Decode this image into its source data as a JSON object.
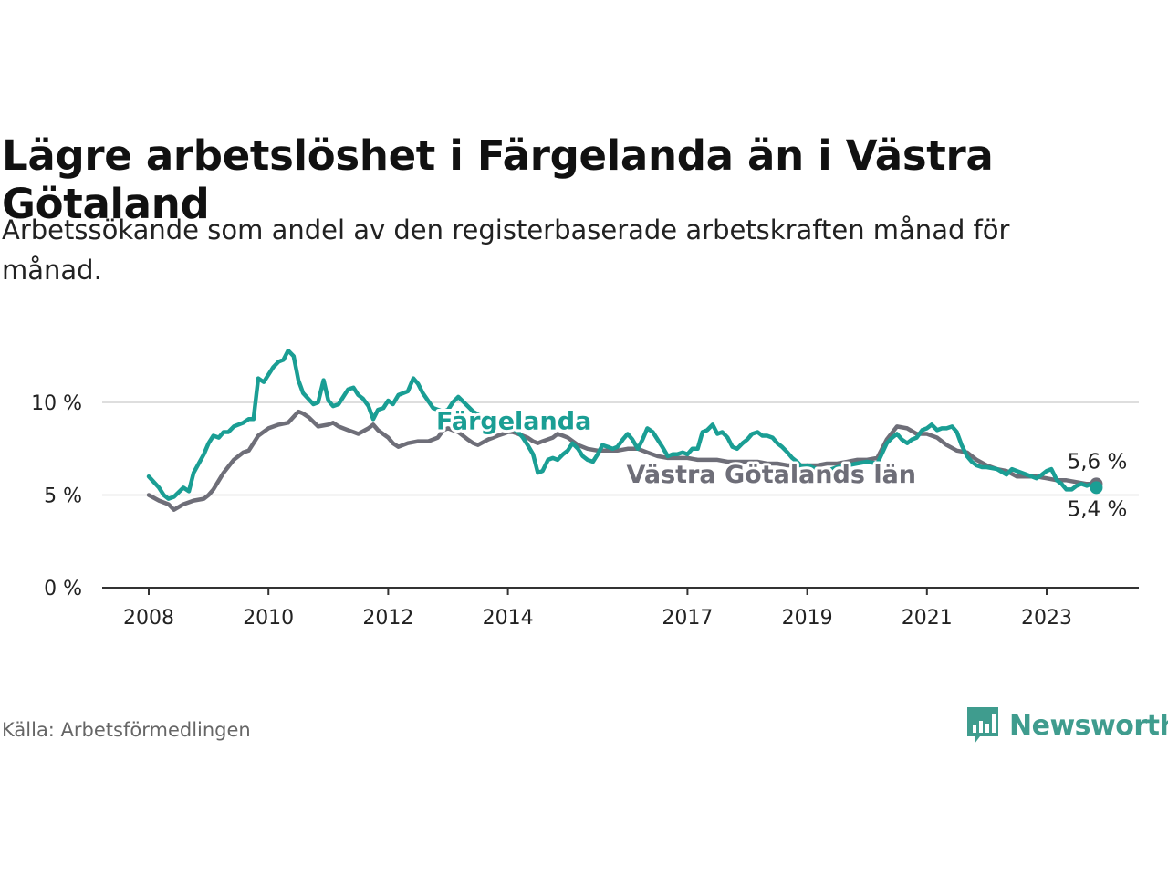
{
  "title": "Lägre arbetslöshet i Färgelanda än i Västra Götaland",
  "subtitle": "Arbetssökande som andel av den registerbaserade arbetskraften månad för månad.",
  "source": "Källa: Arbetsförmedlingen",
  "brand": {
    "name": "Newsworthy",
    "color": "#3f9c8e",
    "icon": "bar-chart-speech-bubble-icon"
  },
  "chart_data": {
    "type": "line",
    "title": "Lägre arbetslöshet i Färgelanda än i Västra Götaland",
    "xlabel": "",
    "ylabel": "",
    "xlim": [
      2008,
      2024.6
    ],
    "ylim": [
      0,
      13
    ],
    "x_ticks": [
      {
        "value": 2008,
        "label": "2008"
      },
      {
        "value": 2010,
        "label": "2010"
      },
      {
        "value": 2012,
        "label": "2012"
      },
      {
        "value": 2014,
        "label": "2014"
      },
      {
        "value": 2017,
        "label": "2017"
      },
      {
        "value": 2019,
        "label": "2019"
      },
      {
        "value": 2021,
        "label": "2021"
      },
      {
        "value": 2023,
        "label": "2023"
      }
    ],
    "y_ticks": [
      {
        "value": 0,
        "label": "0 %"
      },
      {
        "value": 5,
        "label": "5 %"
      },
      {
        "value": 10,
        "label": "10 %"
      }
    ],
    "grid": true,
    "series": [
      {
        "name": "Västra Götalands län",
        "color": "#6e6e78",
        "end_label": "5,6 %",
        "points": [
          [
            2008.0,
            5.0
          ],
          [
            2008.17,
            4.7
          ],
          [
            2008.33,
            4.5
          ],
          [
            2008.42,
            4.2
          ],
          [
            2008.58,
            4.5
          ],
          [
            2008.75,
            4.7
          ],
          [
            2008.92,
            4.8
          ],
          [
            2009.0,
            5.0
          ],
          [
            2009.08,
            5.3
          ],
          [
            2009.25,
            6.2
          ],
          [
            2009.42,
            6.9
          ],
          [
            2009.58,
            7.3
          ],
          [
            2009.67,
            7.4
          ],
          [
            2009.83,
            8.2
          ],
          [
            2010.0,
            8.6
          ],
          [
            2010.17,
            8.8
          ],
          [
            2010.33,
            8.9
          ],
          [
            2010.5,
            9.5
          ],
          [
            2010.58,
            9.4
          ],
          [
            2010.67,
            9.2
          ],
          [
            2010.83,
            8.7
          ],
          [
            2011.0,
            8.8
          ],
          [
            2011.08,
            8.9
          ],
          [
            2011.17,
            8.7
          ],
          [
            2011.33,
            8.5
          ],
          [
            2011.42,
            8.4
          ],
          [
            2011.5,
            8.3
          ],
          [
            2011.67,
            8.6
          ],
          [
            2011.75,
            8.8
          ],
          [
            2011.83,
            8.5
          ],
          [
            2012.0,
            8.1
          ],
          [
            2012.08,
            7.8
          ],
          [
            2012.17,
            7.6
          ],
          [
            2012.33,
            7.8
          ],
          [
            2012.5,
            7.9
          ],
          [
            2012.67,
            7.9
          ],
          [
            2012.75,
            8.0
          ],
          [
            2012.83,
            8.1
          ],
          [
            2012.92,
            8.5
          ],
          [
            2013.0,
            8.6
          ],
          [
            2013.08,
            8.5
          ],
          [
            2013.17,
            8.4
          ],
          [
            2013.33,
            8.0
          ],
          [
            2013.42,
            7.8
          ],
          [
            2013.5,
            7.7
          ],
          [
            2013.67,
            8.0
          ],
          [
            2013.75,
            8.1
          ],
          [
            2013.83,
            8.2
          ],
          [
            2013.92,
            8.3
          ],
          [
            2014.0,
            8.4
          ],
          [
            2014.08,
            8.4
          ],
          [
            2014.17,
            8.3
          ],
          [
            2014.33,
            8.1
          ],
          [
            2014.42,
            7.9
          ],
          [
            2014.5,
            7.8
          ],
          [
            2014.58,
            7.9
          ],
          [
            2014.75,
            8.1
          ],
          [
            2014.83,
            8.3
          ],
          [
            2014.92,
            8.2
          ],
          [
            2015.0,
            8.1
          ],
          [
            2015.17,
            7.7
          ],
          [
            2015.33,
            7.5
          ],
          [
            2015.5,
            7.4
          ],
          [
            2015.67,
            7.4
          ],
          [
            2015.83,
            7.4
          ],
          [
            2016.0,
            7.5
          ],
          [
            2016.17,
            7.5
          ],
          [
            2016.33,
            7.3
          ],
          [
            2016.5,
            7.1
          ],
          [
            2016.67,
            7.0
          ],
          [
            2016.83,
            7.0
          ],
          [
            2017.0,
            7.0
          ],
          [
            2017.17,
            6.9
          ],
          [
            2017.33,
            6.9
          ],
          [
            2017.5,
            6.9
          ],
          [
            2017.67,
            6.8
          ],
          [
            2017.83,
            6.8
          ],
          [
            2018.0,
            6.8
          ],
          [
            2018.17,
            6.8
          ],
          [
            2018.33,
            6.7
          ],
          [
            2018.5,
            6.7
          ],
          [
            2018.67,
            6.6
          ],
          [
            2018.83,
            6.6
          ],
          [
            2019.0,
            6.6
          ],
          [
            2019.17,
            6.6
          ],
          [
            2019.33,
            6.7
          ],
          [
            2019.5,
            6.7
          ],
          [
            2019.67,
            6.8
          ],
          [
            2019.83,
            6.9
          ],
          [
            2020.0,
            6.9
          ],
          [
            2020.17,
            7.0
          ],
          [
            2020.33,
            8.0
          ],
          [
            2020.5,
            8.7
          ],
          [
            2020.67,
            8.6
          ],
          [
            2020.83,
            8.3
          ],
          [
            2021.0,
            8.3
          ],
          [
            2021.17,
            8.1
          ],
          [
            2021.33,
            7.7
          ],
          [
            2021.5,
            7.4
          ],
          [
            2021.67,
            7.3
          ],
          [
            2021.83,
            6.9
          ],
          [
            2022.0,
            6.6
          ],
          [
            2022.17,
            6.4
          ],
          [
            2022.33,
            6.3
          ],
          [
            2022.5,
            6.0
          ],
          [
            2022.67,
            6.0
          ],
          [
            2022.83,
            6.0
          ],
          [
            2023.0,
            5.9
          ],
          [
            2023.17,
            5.8
          ],
          [
            2023.33,
            5.8
          ],
          [
            2023.5,
            5.7
          ],
          [
            2023.67,
            5.6
          ],
          [
            2023.83,
            5.6
          ]
        ]
      },
      {
        "name": "Färgelanda",
        "color": "#1a9e94",
        "end_label": "5,4 %",
        "points": [
          [
            2008.0,
            6.0
          ],
          [
            2008.17,
            5.4
          ],
          [
            2008.25,
            5.0
          ],
          [
            2008.33,
            4.8
          ],
          [
            2008.42,
            4.9
          ],
          [
            2008.58,
            5.4
          ],
          [
            2008.67,
            5.2
          ],
          [
            2008.75,
            6.2
          ],
          [
            2008.92,
            7.2
          ],
          [
            2009.0,
            7.8
          ],
          [
            2009.08,
            8.2
          ],
          [
            2009.17,
            8.1
          ],
          [
            2009.25,
            8.4
          ],
          [
            2009.33,
            8.4
          ],
          [
            2009.42,
            8.7
          ],
          [
            2009.58,
            8.9
          ],
          [
            2009.67,
            9.1
          ],
          [
            2009.75,
            9.1
          ],
          [
            2009.83,
            11.3
          ],
          [
            2009.92,
            11.1
          ],
          [
            2010.08,
            11.9
          ],
          [
            2010.17,
            12.2
          ],
          [
            2010.25,
            12.3
          ],
          [
            2010.33,
            12.8
          ],
          [
            2010.42,
            12.5
          ],
          [
            2010.5,
            11.2
          ],
          [
            2010.58,
            10.5
          ],
          [
            2010.75,
            9.9
          ],
          [
            2010.83,
            10.0
          ],
          [
            2010.92,
            11.2
          ],
          [
            2011.0,
            10.1
          ],
          [
            2011.08,
            9.8
          ],
          [
            2011.17,
            9.9
          ],
          [
            2011.25,
            10.3
          ],
          [
            2011.33,
            10.7
          ],
          [
            2011.42,
            10.8
          ],
          [
            2011.5,
            10.4
          ],
          [
            2011.58,
            10.2
          ],
          [
            2011.67,
            9.8
          ],
          [
            2011.75,
            9.1
          ],
          [
            2011.83,
            9.6
          ],
          [
            2011.92,
            9.7
          ],
          [
            2012.0,
            10.1
          ],
          [
            2012.08,
            9.9
          ],
          [
            2012.17,
            10.4
          ],
          [
            2012.33,
            10.6
          ],
          [
            2012.42,
            11.3
          ],
          [
            2012.5,
            11.0
          ],
          [
            2012.58,
            10.5
          ],
          [
            2012.75,
            9.7
          ],
          [
            2012.92,
            9.5
          ],
          [
            2013.0,
            9.6
          ],
          [
            2013.08,
            10.0
          ],
          [
            2013.17,
            10.3
          ],
          [
            2013.33,
            9.8
          ],
          [
            2013.42,
            9.5
          ],
          [
            2013.58,
            9.2
          ],
          [
            2013.75,
            9.0
          ],
          [
            2013.92,
            8.8
          ],
          [
            2014.0,
            8.6
          ],
          [
            2014.08,
            8.6
          ],
          [
            2014.17,
            8.4
          ],
          [
            2014.25,
            8.1
          ],
          [
            2014.33,
            7.7
          ],
          [
            2014.42,
            7.2
          ],
          [
            2014.5,
            6.2
          ],
          [
            2014.58,
            6.3
          ],
          [
            2014.67,
            6.9
          ],
          [
            2014.75,
            7.0
          ],
          [
            2014.83,
            6.9
          ],
          [
            2014.92,
            7.2
          ],
          [
            2015.0,
            7.4
          ],
          [
            2015.08,
            7.8
          ],
          [
            2015.17,
            7.5
          ],
          [
            2015.25,
            7.1
          ],
          [
            2015.33,
            6.9
          ],
          [
            2015.42,
            6.8
          ],
          [
            2015.5,
            7.2
          ],
          [
            2015.58,
            7.7
          ],
          [
            2015.67,
            7.6
          ],
          [
            2015.75,
            7.5
          ],
          [
            2015.83,
            7.6
          ],
          [
            2015.92,
            8.0
          ],
          [
            2016.0,
            8.3
          ],
          [
            2016.08,
            8.0
          ],
          [
            2016.17,
            7.5
          ],
          [
            2016.25,
            8.0
          ],
          [
            2016.33,
            8.6
          ],
          [
            2016.42,
            8.4
          ],
          [
            2016.5,
            8.0
          ],
          [
            2016.58,
            7.6
          ],
          [
            2016.67,
            7.1
          ],
          [
            2016.75,
            7.2
          ],
          [
            2016.83,
            7.2
          ],
          [
            2016.92,
            7.3
          ],
          [
            2017.0,
            7.2
          ],
          [
            2017.08,
            7.5
          ],
          [
            2017.17,
            7.5
          ],
          [
            2017.25,
            8.4
          ],
          [
            2017.33,
            8.5
          ],
          [
            2017.42,
            8.8
          ],
          [
            2017.5,
            8.3
          ],
          [
            2017.58,
            8.4
          ],
          [
            2017.67,
            8.1
          ],
          [
            2017.75,
            7.6
          ],
          [
            2017.83,
            7.5
          ],
          [
            2017.92,
            7.8
          ],
          [
            2018.0,
            8.0
          ],
          [
            2018.08,
            8.3
          ],
          [
            2018.17,
            8.4
          ],
          [
            2018.25,
            8.2
          ],
          [
            2018.33,
            8.2
          ],
          [
            2018.42,
            8.1
          ],
          [
            2018.5,
            7.8
          ],
          [
            2018.58,
            7.6
          ],
          [
            2018.67,
            7.3
          ],
          [
            2018.75,
            7.0
          ],
          [
            2018.83,
            6.8
          ],
          [
            2018.92,
            6.5
          ],
          [
            2019.0,
            6.6
          ],
          [
            2019.17,
            6.4
          ],
          [
            2019.33,
            6.3
          ],
          [
            2019.5,
            6.5
          ],
          [
            2019.67,
            6.6
          ],
          [
            2019.83,
            6.7
          ],
          [
            2020.0,
            6.8
          ],
          [
            2020.17,
            6.7
          ],
          [
            2020.33,
            7.8
          ],
          [
            2020.42,
            8.1
          ],
          [
            2020.5,
            8.3
          ],
          [
            2020.58,
            8.0
          ],
          [
            2020.67,
            7.8
          ],
          [
            2020.75,
            8.0
          ],
          [
            2020.83,
            8.1
          ],
          [
            2020.92,
            8.5
          ],
          [
            2021.0,
            8.6
          ],
          [
            2021.08,
            8.8
          ],
          [
            2021.17,
            8.5
          ],
          [
            2021.25,
            8.6
          ],
          [
            2021.33,
            8.6
          ],
          [
            2021.42,
            8.7
          ],
          [
            2021.5,
            8.4
          ],
          [
            2021.58,
            7.7
          ],
          [
            2021.67,
            7.1
          ],
          [
            2021.75,
            6.8
          ],
          [
            2021.83,
            6.6
          ],
          [
            2021.92,
            6.5
          ],
          [
            2022.0,
            6.5
          ],
          [
            2022.17,
            6.4
          ],
          [
            2022.33,
            6.1
          ],
          [
            2022.42,
            6.4
          ],
          [
            2022.5,
            6.3
          ],
          [
            2022.67,
            6.1
          ],
          [
            2022.75,
            6.0
          ],
          [
            2022.83,
            5.9
          ],
          [
            2022.92,
            6.1
          ],
          [
            2023.0,
            6.3
          ],
          [
            2023.08,
            6.4
          ],
          [
            2023.17,
            5.8
          ],
          [
            2023.25,
            5.6
          ],
          [
            2023.33,
            5.3
          ],
          [
            2023.42,
            5.3
          ],
          [
            2023.5,
            5.5
          ],
          [
            2023.58,
            5.6
          ],
          [
            2023.67,
            5.5
          ],
          [
            2023.75,
            5.6
          ],
          [
            2023.83,
            5.4
          ]
        ]
      }
    ],
    "annotations": [
      {
        "text": "Färgelanda",
        "series": "Färgelanda",
        "x": 2014.1,
        "y": 9.0
      },
      {
        "text": "Västra Götalands län",
        "series": "Västra Götalands län",
        "x": 2018.4,
        "y": 6.1
      }
    ]
  }
}
